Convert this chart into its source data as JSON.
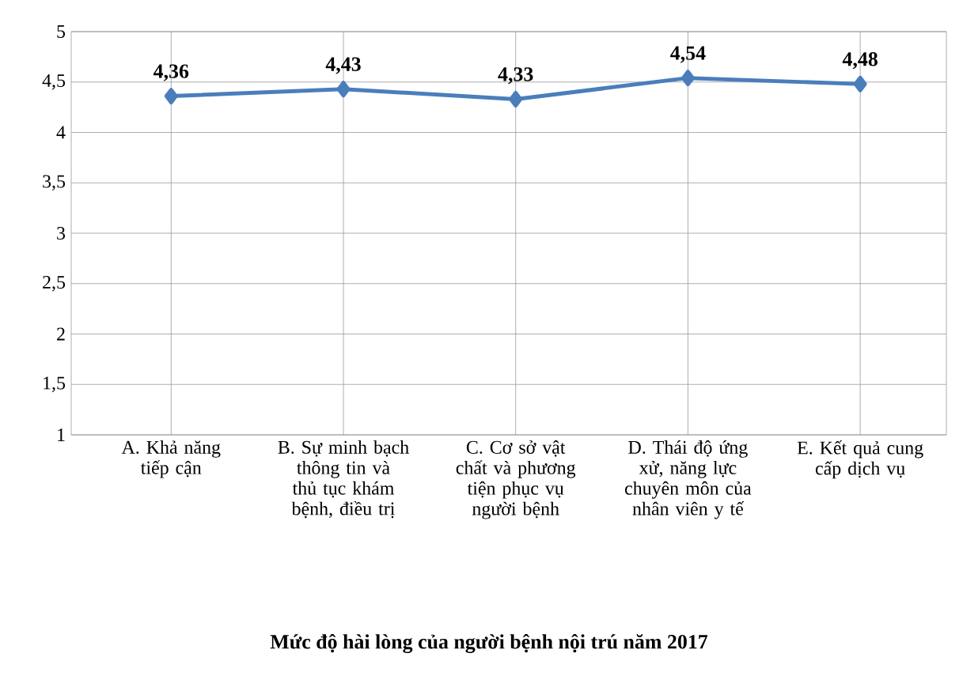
{
  "chart_data": {
    "type": "line",
    "title": "**Mức độ hài lòng của người bệnh nội trú năm 2017**",
    "categories": [
      "A. Khả năng tiếp cận",
      "B. Sự minh bạch thông tin và thủ tục khám bệnh, điều trị",
      "C. Cơ sở vật chất và phương tiện phục vụ người bệnh",
      "D. Thái độ ứng xử, năng lực chuyên môn của nhân viên y tế",
      "E. Kết quả cung cấp dịch vụ"
    ],
    "values": [
      4.36,
      4.43,
      4.33,
      4.54,
      4.48
    ],
    "value_labels": [
      "4,36",
      "4,43",
      "4,33",
      "4,54",
      "4,48"
    ],
    "color": "#4a7ebb",
    "marker": "diamond",
    "grid": true,
    "ylim": [
      1,
      5
    ],
    "yticks": [
      1,
      {
        "value": 1.5,
        "label": "1,5"
      },
      2,
      {
        "value": 2.5,
        "label": "2,5"
      },
      3,
      {
        "value": 3.5,
        "label": "3,5"
      },
      4,
      {
        "value": 4.5,
        "label": "4,5"
      },
      5
    ]
  }
}
